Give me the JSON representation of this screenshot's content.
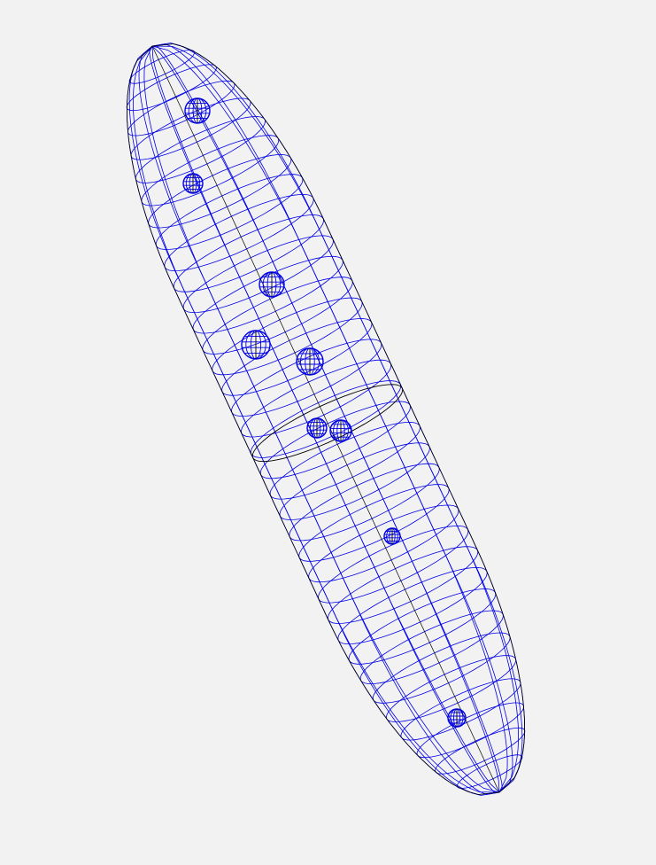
{
  "scene": {
    "colors": {
      "background": "#f2f2f2",
      "wireframe": "#0000e6",
      "outline": "#000000"
    },
    "body": {
      "shape": "elongated capsule with pointed ends",
      "rings": 36,
      "meridians": 14
    },
    "spheres": [
      {
        "id": "sphere-1"
      },
      {
        "id": "sphere-2"
      },
      {
        "id": "sphere-3"
      },
      {
        "id": "sphere-4"
      },
      {
        "id": "sphere-5"
      },
      {
        "id": "sphere-6"
      },
      {
        "id": "sphere-7"
      },
      {
        "id": "sphere-8"
      },
      {
        "id": "sphere-9"
      }
    ]
  }
}
